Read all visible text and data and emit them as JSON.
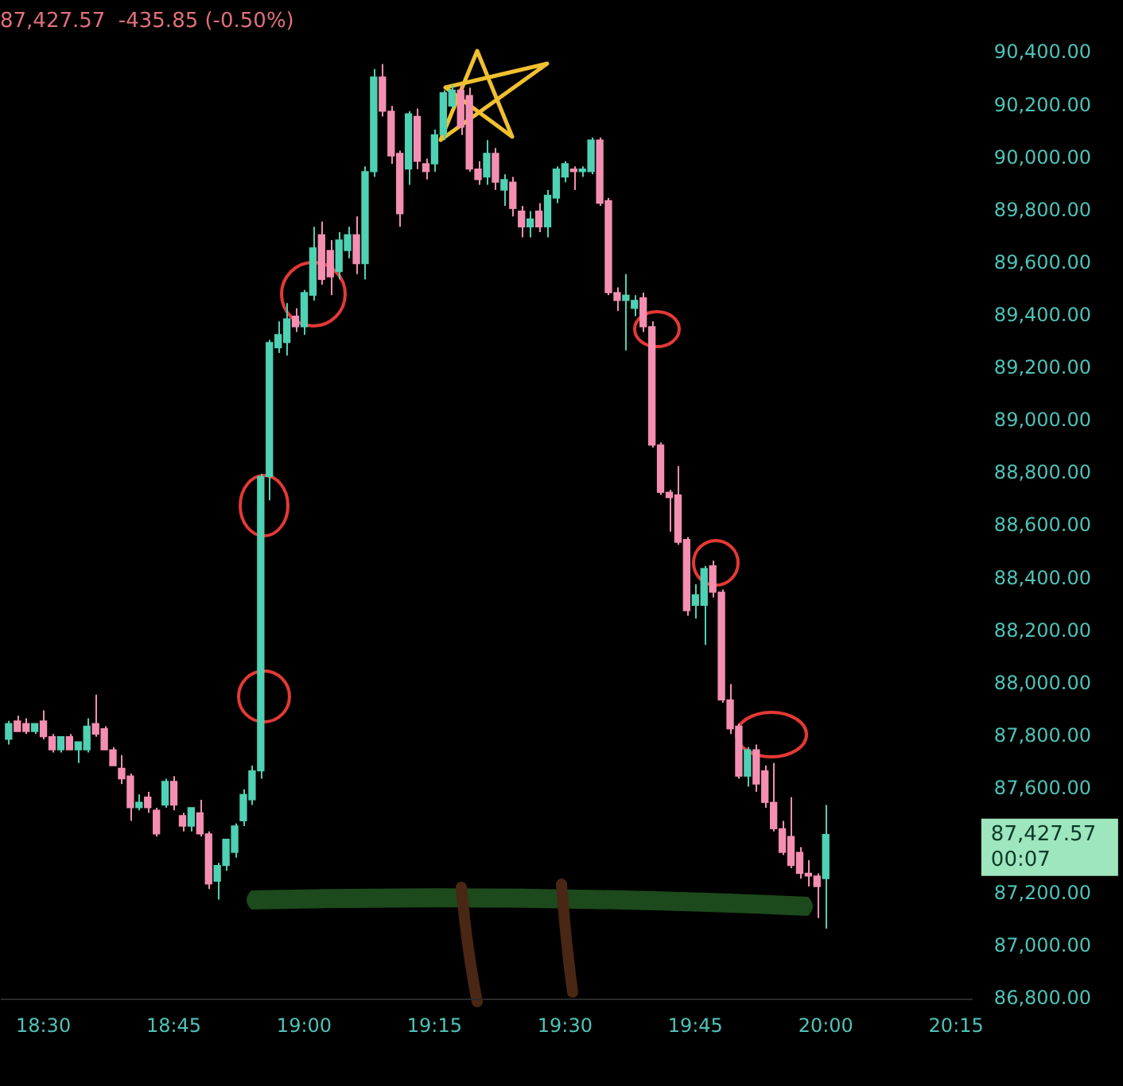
{
  "chart_data": {
    "type": "candlestick",
    "title": "87,427.57  -435.85 (-0.50%)",
    "x": [
      18.4333,
      18.45,
      18.4667,
      18.4833,
      18.5,
      18.5167,
      18.5333,
      18.55,
      18.5667,
      18.5833,
      18.6,
      18.6167,
      18.6333,
      18.65,
      18.6667,
      18.6833,
      18.7,
      18.7167,
      18.7333,
      18.75,
      18.7667,
      18.7833,
      18.8,
      18.8167,
      18.8333,
      18.85,
      18.8667,
      18.8833,
      18.9,
      18.9167,
      18.9333,
      18.95,
      18.9667,
      18.9833,
      19,
      19.0167,
      19.0333,
      19.05,
      19.0667,
      19.0833,
      19.1,
      19.1167,
      19.1333,
      19.15,
      19.1667,
      19.1833,
      19.2,
      19.2167,
      19.2333,
      19.25,
      19.2667,
      19.2833,
      19.3,
      19.3167,
      19.3333,
      19.35,
      19.3667,
      19.3833,
      19.4,
      19.4167,
      19.4333,
      19.45,
      19.4667,
      19.4833,
      19.5,
      19.5167,
      19.5333,
      19.55,
      19.5667,
      19.5833,
      19.6,
      19.6167,
      19.6333,
      19.65,
      19.6667,
      19.6833,
      19.7,
      19.7167,
      19.7333,
      19.75,
      19.7667,
      19.7833,
      19.8,
      19.8167,
      19.8333,
      19.85,
      19.8667,
      19.8833,
      19.9,
      19.9167,
      19.9333,
      19.95,
      19.9667,
      19.9833,
      20
    ],
    "ohlc": [
      [
        87790,
        87860,
        87770,
        87850
      ],
      [
        87860,
        87880,
        87820,
        87820
      ],
      [
        87850,
        87870,
        87810,
        87820
      ],
      [
        87820,
        87850,
        87810,
        87850
      ],
      [
        87860,
        87900,
        87790,
        87800
      ],
      [
        87800,
        87810,
        87740,
        87750
      ],
      [
        87750,
        87800,
        87740,
        87800
      ],
      [
        87800,
        87810,
        87750,
        87750
      ],
      [
        87750,
        87780,
        87700,
        87780
      ],
      [
        87750,
        87870,
        87740,
        87840
      ],
      [
        87850,
        87960,
        87800,
        87810
      ],
      [
        87830,
        87840,
        87750,
        87750
      ],
      [
        87750,
        87760,
        87690,
        87690
      ],
      [
        87680,
        87730,
        87620,
        87640
      ],
      [
        87650,
        87660,
        87480,
        87530
      ],
      [
        87530,
        87580,
        87520,
        87550
      ],
      [
        87570,
        87590,
        87510,
        87530
      ],
      [
        87520,
        87530,
        87420,
        87430
      ],
      [
        87540,
        87640,
        87530,
        87630
      ],
      [
        87630,
        87650,
        87520,
        87540
      ],
      [
        87500,
        87510,
        87440,
        87460
      ],
      [
        87460,
        87530,
        87440,
        87530
      ],
      [
        87510,
        87560,
        87420,
        87430
      ],
      [
        87430,
        87440,
        87220,
        87240
      ],
      [
        87250,
        87320,
        87180,
        87310
      ],
      [
        87310,
        87410,
        87290,
        87410
      ],
      [
        87360,
        87470,
        87340,
        87460
      ],
      [
        87480,
        87600,
        87460,
        87580
      ],
      [
        87560,
        87690,
        87540,
        87670
      ],
      [
        87670,
        88800,
        87640,
        88790
      ],
      [
        88790,
        89310,
        88700,
        89300
      ],
      [
        89280,
        89380,
        89260,
        89330
      ],
      [
        89300,
        89450,
        89250,
        89390
      ],
      [
        89400,
        89430,
        89340,
        89360
      ],
      [
        89360,
        89500,
        89330,
        89490
      ],
      [
        89480,
        89740,
        89460,
        89660
      ],
      [
        89710,
        89760,
        89520,
        89540
      ],
      [
        89650,
        89690,
        89480,
        89550
      ],
      [
        89570,
        89720,
        89540,
        89690
      ],
      [
        89650,
        89740,
        89620,
        89710
      ],
      [
        89710,
        89780,
        89560,
        89600
      ],
      [
        89600,
        89970,
        89540,
        89950
      ],
      [
        89950,
        90340,
        89930,
        90310
      ],
      [
        90310,
        90360,
        90160,
        90180
      ],
      [
        90180,
        90200,
        89980,
        90010
      ],
      [
        90020,
        90030,
        89740,
        89790
      ],
      [
        89960,
        90180,
        89900,
        90170
      ],
      [
        90160,
        90190,
        89960,
        89990
      ],
      [
        89980,
        90000,
        89920,
        89950
      ],
      [
        89980,
        90110,
        89950,
        90090
      ],
      [
        90090,
        90260,
        90070,
        90250
      ],
      [
        90200,
        90280,
        90190,
        90260
      ],
      [
        90260,
        90280,
        90090,
        90120
      ],
      [
        90240,
        90270,
        89950,
        89960
      ],
      [
        89960,
        89990,
        89900,
        89920
      ],
      [
        89930,
        90070,
        89900,
        90020
      ],
      [
        90020,
        90040,
        89880,
        89910
      ],
      [
        89880,
        89940,
        89820,
        89920
      ],
      [
        89910,
        89930,
        89780,
        89810
      ],
      [
        89800,
        89820,
        89700,
        89740
      ],
      [
        89740,
        89800,
        89700,
        89770
      ],
      [
        89800,
        89830,
        89720,
        89740
      ],
      [
        89740,
        89880,
        89700,
        89860
      ],
      [
        89850,
        89970,
        89830,
        89960
      ],
      [
        89930,
        89990,
        89910,
        89980
      ],
      [
        89960,
        89970,
        89880,
        89950
      ],
      [
        89950,
        89970,
        89930,
        89960
      ],
      [
        89950,
        90080,
        89940,
        90070
      ],
      [
        90070,
        90080,
        89820,
        89830
      ],
      [
        89840,
        89850,
        89480,
        89490
      ],
      [
        89490,
        89510,
        89420,
        89460
      ],
      [
        89460,
        89560,
        89270,
        89480
      ],
      [
        89430,
        89480,
        89400,
        89460
      ],
      [
        89470,
        89490,
        89340,
        89360
      ],
      [
        89360,
        89380,
        88900,
        88910
      ],
      [
        88910,
        88920,
        88720,
        88730
      ],
      [
        88730,
        88740,
        88580,
        88710
      ],
      [
        88720,
        88830,
        88530,
        88540
      ],
      [
        88550,
        88560,
        88260,
        88280
      ],
      [
        88300,
        88380,
        88250,
        88340
      ],
      [
        88300,
        88450,
        88150,
        88440
      ],
      [
        88450,
        88470,
        88330,
        88350
      ],
      [
        88350,
        88360,
        87930,
        87940
      ],
      [
        87940,
        88000,
        87810,
        87830
      ],
      [
        87840,
        87850,
        87640,
        87650
      ],
      [
        87650,
        87760,
        87610,
        87750
      ],
      [
        87750,
        87770,
        87590,
        87620
      ],
      [
        87670,
        87690,
        87530,
        87550
      ],
      [
        87550,
        87700,
        87440,
        87450
      ],
      [
        87450,
        87480,
        87350,
        87360
      ],
      [
        87420,
        87570,
        87300,
        87310
      ],
      [
        87360,
        87380,
        87260,
        87280
      ],
      [
        87280,
        87330,
        87230,
        87270
      ],
      [
        87270,
        87280,
        87110,
        87230
      ],
      [
        87260,
        87540,
        87070,
        87427.57
      ]
    ],
    "colors": [
      "#4fd1b3",
      "#f48fb1",
      "#f48fb1",
      "#4fd1b3",
      "#f48fb1",
      "#f48fb1",
      "#4fd1b3",
      "#f48fb1",
      "#4fd1b3",
      "#4fd1b3",
      "#f48fb1",
      "#f48fb1",
      "#f48fb1",
      "#f48fb1",
      "#f48fb1",
      "#4fd1b3",
      "#f48fb1",
      "#f48fb1",
      "#4fd1b3",
      "#f48fb1",
      "#f48fb1",
      "#4fd1b3",
      "#f48fb1",
      "#f48fb1",
      "#4fd1b3",
      "#4fd1b3",
      "#4fd1b3",
      "#4fd1b3",
      "#4fd1b3",
      "#4fd1b3",
      "#4fd1b3",
      "#4fd1b3",
      "#4fd1b3",
      "#f48fb1",
      "#4fd1b3",
      "#4fd1b3",
      "#f48fb1",
      "#f48fb1",
      "#4fd1b3",
      "#4fd1b3",
      "#f48fb1",
      "#4fd1b3",
      "#4fd1b3",
      "#f48fb1",
      "#f48fb1",
      "#f48fb1",
      "#4fd1b3",
      "#f48fb1",
      "#f48fb1",
      "#4fd1b3",
      "#4fd1b3",
      "#4fd1b3",
      "#f48fb1",
      "#f48fb1",
      "#f48fb1",
      "#4fd1b3",
      "#f48fb1",
      "#4fd1b3",
      "#f48fb1",
      "#f48fb1",
      "#4fd1b3",
      "#f48fb1",
      "#4fd1b3",
      "#4fd1b3",
      "#4fd1b3",
      "#f48fb1",
      "#4fd1b3",
      "#4fd1b3",
      "#f48fb1",
      "#f48fb1",
      "#f48fb1",
      "#4fd1b3",
      "#4fd1b3",
      "#f48fb1",
      "#f48fb1",
      "#f48fb1",
      "#f48fb1",
      "#f48fb1",
      "#f48fb1",
      "#4fd1b3",
      "#4fd1b3",
      "#f48fb1",
      "#f48fb1",
      "#f48fb1",
      "#f48fb1",
      "#4fd1b3",
      "#f48fb1",
      "#f48fb1",
      "#f48fb1",
      "#f48fb1",
      "#f48fb1",
      "#f48fb1",
      "#f48fb1",
      "#f48fb1",
      "#4fd1b3"
    ],
    "xlim": [
      18.42,
      20.28
    ],
    "xticks": [
      {
        "value": 18.5,
        "label": "18:30"
      },
      {
        "value": 18.75,
        "label": "18:45"
      },
      {
        "value": 19,
        "label": "19:00"
      },
      {
        "value": 19.25,
        "label": "19:15"
      },
      {
        "value": 19.5,
        "label": "19:30"
      },
      {
        "value": 19.75,
        "label": "19:45"
      },
      {
        "value": 20,
        "label": "20:00"
      },
      {
        "value": 20.25,
        "label": "20:15"
      }
    ],
    "ylim": [
      86800,
      90400
    ],
    "yticks": [
      {
        "value": 86800,
        "label": "86,800.00"
      },
      {
        "value": 87000,
        "label": "87,000.00"
      },
      {
        "value": 87200,
        "label": "87,200.00"
      },
      {
        "value": 87600,
        "label": "87,600.00"
      },
      {
        "value": 87800,
        "label": "87,800.00"
      },
      {
        "value": 88000,
        "label": "88,000.00"
      },
      {
        "value": 88200,
        "label": "88,200.00"
      },
      {
        "value": 88400,
        "label": "88,400.00"
      },
      {
        "value": 88600,
        "label": "88,600.00"
      },
      {
        "value": 88800,
        "label": "88,800.00"
      },
      {
        "value": 89000,
        "label": "89,000.00"
      },
      {
        "value": 89200,
        "label": "89,200.00"
      },
      {
        "value": 89400,
        "label": "89,400.00"
      },
      {
        "value": 89600,
        "label": "89,600.00"
      },
      {
        "value": 89800,
        "label": "89,800.00"
      },
      {
        "value": 90000,
        "label": "90,000.00"
      },
      {
        "value": 90200,
        "label": "90,200.00"
      },
      {
        "value": 90400,
        "label": "90,400.00"
      }
    ],
    "annotations": [
      "87,427.57",
      "00:07"
    ],
    "grid": false,
    "legend": false
  }
}
